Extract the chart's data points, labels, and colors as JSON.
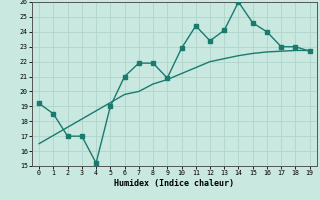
{
  "title": "",
  "xlabel": "Humidex (Indice chaleur)",
  "ylabel": "",
  "x": [
    0,
    1,
    2,
    3,
    4,
    5,
    6,
    7,
    8,
    9,
    10,
    11,
    12,
    13,
    14,
    15,
    16,
    17,
    18,
    19
  ],
  "y_curve": [
    19.2,
    18.5,
    17.0,
    17.0,
    15.2,
    19.0,
    21.0,
    21.9,
    21.9,
    20.9,
    22.9,
    24.4,
    23.4,
    24.1,
    26.0,
    24.6,
    24.0,
    23.0,
    23.0,
    22.7
  ],
  "y_trend": [
    16.5,
    17.05,
    17.6,
    18.15,
    18.7,
    19.25,
    19.8,
    20.0,
    20.5,
    20.8,
    21.2,
    21.6,
    22.0,
    22.2,
    22.4,
    22.55,
    22.65,
    22.7,
    22.75,
    22.75
  ],
  "line_color": "#1a7a6e",
  "bg_color": "#c8e8e0",
  "grid_color": "#b0d4cc",
  "ylim": [
    15,
    26
  ],
  "yticks": [
    15,
    16,
    17,
    18,
    19,
    20,
    21,
    22,
    23,
    24,
    25,
    26
  ],
  "xticks": [
    0,
    1,
    2,
    3,
    4,
    5,
    6,
    7,
    8,
    9,
    10,
    11,
    12,
    13,
    14,
    15,
    16,
    17,
    18,
    19
  ],
  "marker": "s",
  "markersize": 2.5,
  "linewidth": 1.0
}
